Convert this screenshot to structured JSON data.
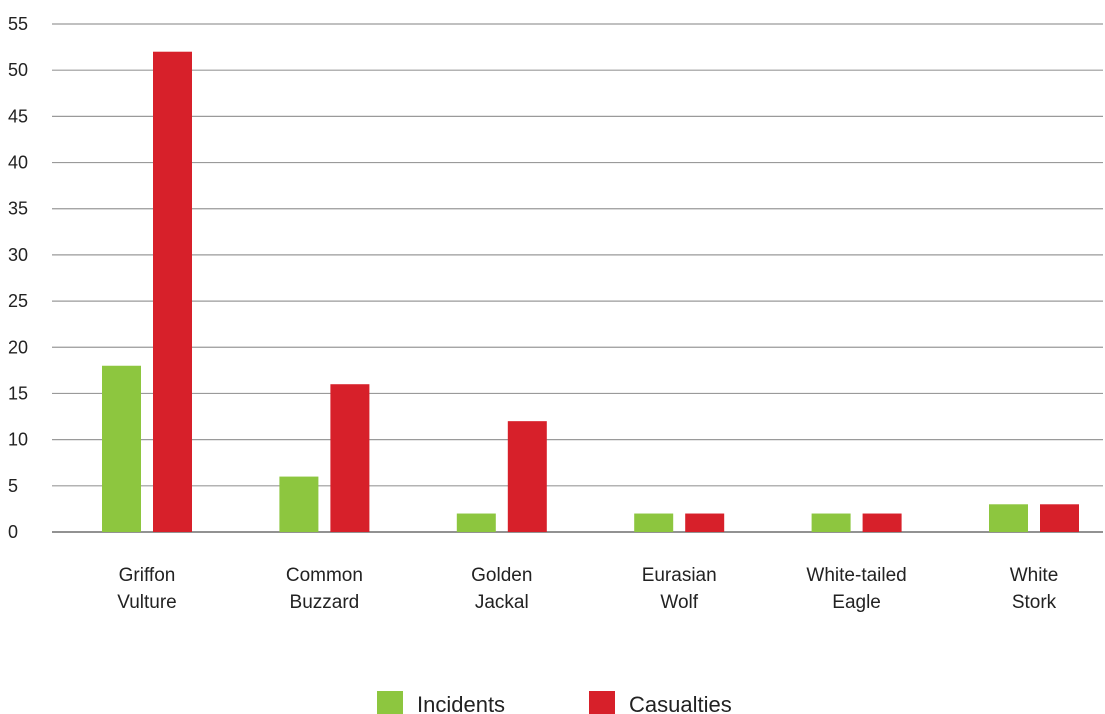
{
  "chart_data": {
    "type": "bar",
    "title": "",
    "xlabel": "",
    "ylabel": "",
    "categories": [
      [
        "Griffon",
        "Vulture"
      ],
      [
        "Common",
        "Buzzard"
      ],
      [
        "Golden",
        "Jackal"
      ],
      [
        "Eurasian",
        "Wolf"
      ],
      [
        "White-tailed",
        "Eagle"
      ],
      [
        "White",
        "Stork"
      ]
    ],
    "series": [
      {
        "name": "Incidents",
        "color": "#8dc63f",
        "values": [
          18,
          6,
          2,
          2,
          2,
          3
        ]
      },
      {
        "name": "Casualties",
        "color": "#d7202a",
        "values": [
          52,
          16,
          12,
          2,
          2,
          3
        ]
      }
    ],
    "yticks": [
      "0",
      "5",
      "10",
      "15",
      "20",
      "25",
      "30",
      "35",
      "40",
      "45",
      "50",
      "55"
    ],
    "ylim": [
      0,
      55
    ],
    "grid": true,
    "legend_position": "bottom-center"
  }
}
